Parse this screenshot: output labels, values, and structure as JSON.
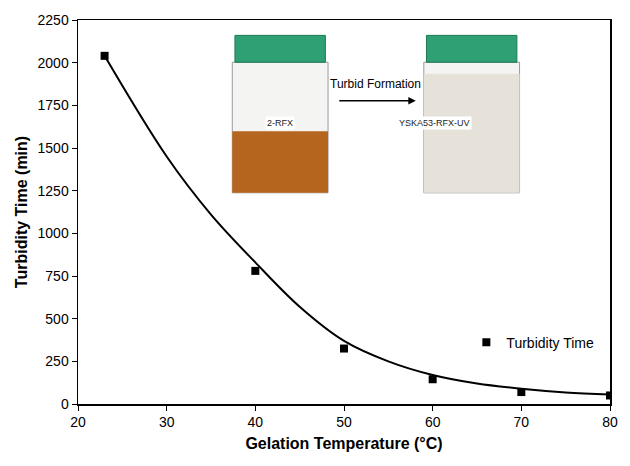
{
  "chart_data": {
    "type": "scatter",
    "x_label": "Gelation Temperature (°C)",
    "y_label": "Turbidity Time (min)",
    "series": [
      {
        "name": "Turbidity Time",
        "type": "scatter",
        "color": "#000000",
        "marker": "square",
        "x": [
          23,
          40,
          50,
          60,
          70,
          80
        ],
        "values": [
          2040,
          780,
          325,
          145,
          70,
          50
        ]
      },
      {
        "type": "line",
        "color": "#000000",
        "line_style": "solid",
        "x": [
          23,
          30,
          35,
          40,
          45,
          50,
          55,
          60,
          65,
          70,
          75,
          80
        ],
        "values": [
          2040,
          1450,
          1110,
          830,
          570,
          370,
          250,
          170,
          120,
          90,
          68,
          55
        ]
      }
    ],
    "xlim": [
      20,
      80
    ],
    "xticks": [
      20,
      30,
      40,
      50,
      60,
      70,
      80
    ],
    "ylim": [
      0,
      2250
    ],
    "yticks": [
      0,
      250,
      500,
      750,
      1000,
      1250,
      1500,
      1750,
      2000,
      2250
    ],
    "legend": "lower right",
    "annotations": [
      "Turbid Formation"
    ],
    "insets": [
      {
        "label": "2-RFX",
        "color": "#b5651d"
      },
      {
        "label": "YSKA53-RFX-UV",
        "color": "#e6e2da"
      }
    ]
  }
}
